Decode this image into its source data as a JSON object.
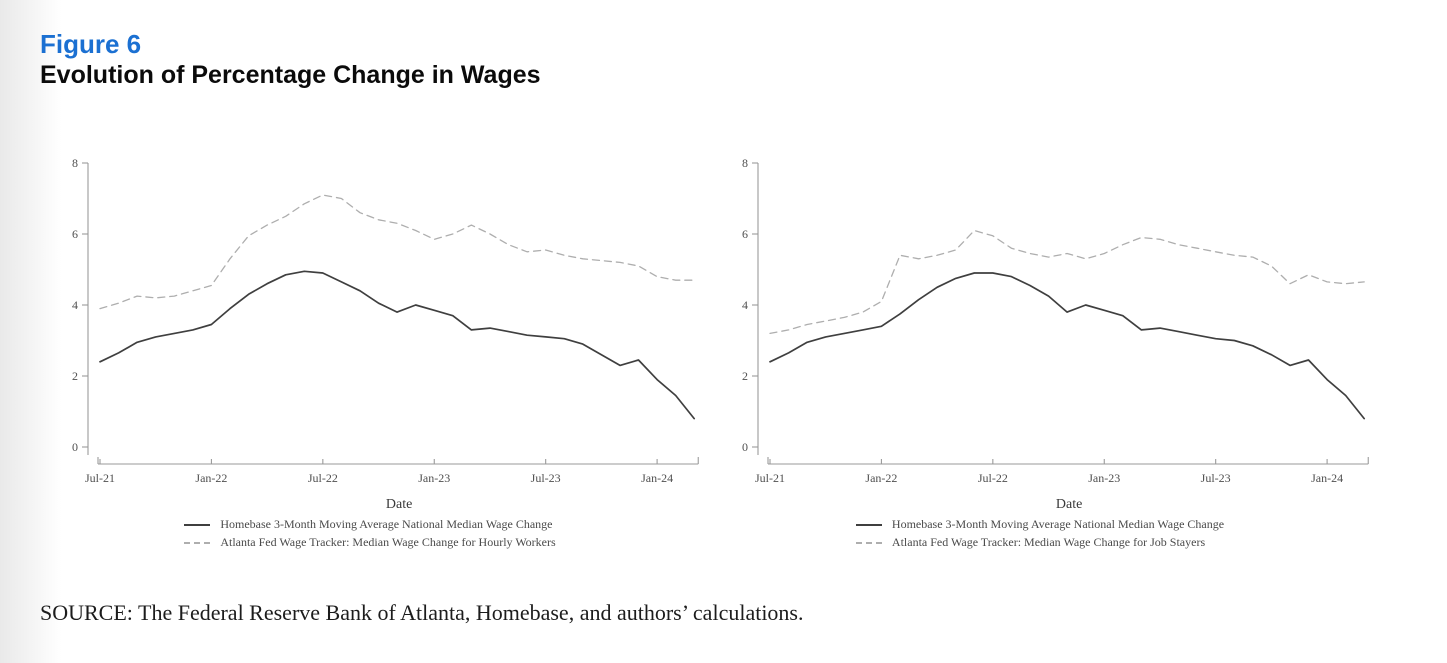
{
  "page": {
    "figure_label": "Figure 6",
    "figure_title": "Evolution of Percentage Change in Wages",
    "source_note": "SOURCE: The Federal Reserve Bank of Atlanta, Homebase, and authors’ calculations."
  },
  "colors": {
    "figure_label_blue": "#1b70d2",
    "solid_line": "#3f3f3f",
    "dashed_line": "#aeaeae",
    "axis_line": "#9a9a9a",
    "tick_text": "#4f4f4f",
    "date_label_text": "#3a3a3a"
  },
  "chart_data": [
    {
      "type": "line",
      "panel": "left",
      "xlabel": "Date",
      "ylabel": "",
      "ylim": [
        0,
        8
      ],
      "yticks": [
        0,
        2,
        4,
        6,
        8
      ],
      "grid": false,
      "legend_position": "below",
      "x": [
        "Jul-21",
        "Aug-21",
        "Sep-21",
        "Oct-21",
        "Nov-21",
        "Dec-21",
        "Jan-22",
        "Feb-22",
        "Mar-22",
        "Apr-22",
        "May-22",
        "Jun-22",
        "Jul-22",
        "Aug-22",
        "Sep-22",
        "Oct-22",
        "Nov-22",
        "Dec-22",
        "Jan-23",
        "Feb-23",
        "Mar-23",
        "Apr-23",
        "May-23",
        "Jun-23",
        "Jul-23",
        "Aug-23",
        "Sep-23",
        "Oct-23",
        "Nov-23",
        "Dec-23",
        "Jan-24",
        "Feb-24",
        "Mar-24"
      ],
      "x_tick_indices": [
        0,
        6,
        12,
        18,
        24,
        30
      ],
      "series": [
        {
          "name": "Homebase 3-Month Moving Average National Median Wage Change",
          "style": "solid",
          "values": [
            2.4,
            2.65,
            2.95,
            3.1,
            3.2,
            3.3,
            3.45,
            3.9,
            4.3,
            4.6,
            4.85,
            4.95,
            4.9,
            4.65,
            4.4,
            4.05,
            3.8,
            4.0,
            3.85,
            3.7,
            3.3,
            3.35,
            3.25,
            3.15,
            3.1,
            3.05,
            2.9,
            2.6,
            2.3,
            2.45,
            1.9,
            1.45,
            0.8
          ]
        },
        {
          "name": "Atlanta Fed Wage Tracker: Median Wage Change for Hourly Workers",
          "style": "dashed",
          "values": [
            3.9,
            4.05,
            4.25,
            4.2,
            4.25,
            4.4,
            4.55,
            5.3,
            5.95,
            6.25,
            6.5,
            6.85,
            7.1,
            7.0,
            6.6,
            6.4,
            6.3,
            6.1,
            5.85,
            6.0,
            6.25,
            6.0,
            5.7,
            5.5,
            5.55,
            5.4,
            5.3,
            5.25,
            5.2,
            5.1,
            4.8,
            4.7,
            4.7
          ]
        }
      ]
    },
    {
      "type": "line",
      "panel": "right",
      "xlabel": "Date",
      "ylabel": "",
      "ylim": [
        0,
        8
      ],
      "yticks": [
        0,
        2,
        4,
        6,
        8
      ],
      "grid": false,
      "legend_position": "below",
      "x": [
        "Jul-21",
        "Aug-21",
        "Sep-21",
        "Oct-21",
        "Nov-21",
        "Dec-21",
        "Jan-22",
        "Feb-22",
        "Mar-22",
        "Apr-22",
        "May-22",
        "Jun-22",
        "Jul-22",
        "Aug-22",
        "Sep-22",
        "Oct-22",
        "Nov-22",
        "Dec-22",
        "Jan-23",
        "Feb-23",
        "Mar-23",
        "Apr-23",
        "May-23",
        "Jun-23",
        "Jul-23",
        "Aug-23",
        "Sep-23",
        "Oct-23",
        "Nov-23",
        "Dec-23",
        "Jan-24",
        "Feb-24",
        "Mar-24"
      ],
      "x_tick_indices": [
        0,
        6,
        12,
        18,
        24,
        30
      ],
      "series": [
        {
          "name": "Homebase 3-Month Moving Average National Median Wage Change",
          "style": "solid",
          "values": [
            2.4,
            2.65,
            2.95,
            3.1,
            3.2,
            3.3,
            3.4,
            3.75,
            4.15,
            4.5,
            4.75,
            4.9,
            4.9,
            4.8,
            4.55,
            4.25,
            3.8,
            4.0,
            3.85,
            3.7,
            3.3,
            3.35,
            3.25,
            3.15,
            3.05,
            3.0,
            2.85,
            2.6,
            2.3,
            2.45,
            1.9,
            1.45,
            0.8
          ]
        },
        {
          "name": "Atlanta Fed Wage Tracker: Median Wage Change for Job Stayers",
          "style": "dashed",
          "values": [
            3.2,
            3.3,
            3.45,
            3.55,
            3.65,
            3.8,
            4.1,
            5.4,
            5.3,
            5.4,
            5.55,
            6.1,
            5.95,
            5.6,
            5.45,
            5.35,
            5.45,
            5.3,
            5.45,
            5.7,
            5.9,
            5.85,
            5.7,
            5.6,
            5.5,
            5.4,
            5.35,
            5.1,
            4.6,
            4.85,
            4.65,
            4.6,
            4.65
          ]
        }
      ]
    }
  ]
}
